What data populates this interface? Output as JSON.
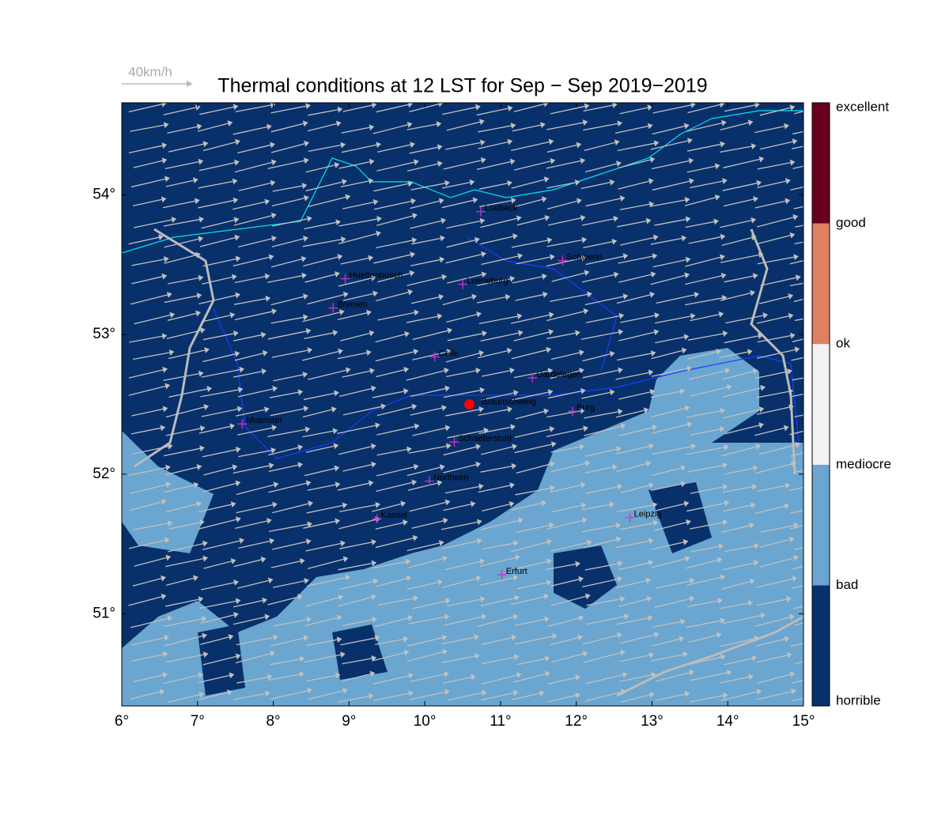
{
  "chart_data": {
    "type": "map",
    "title": "Thermal conditions at 12 LST for Sep − Sep  2019−2019",
    "wind_legend": "40km/h",
    "xlim": [
      6,
      15
    ],
    "xticks": [
      {
        "value": 6,
        "label": "6°"
      },
      {
        "value": 7,
        "label": "7°"
      },
      {
        "value": 8,
        "label": "8°"
      },
      {
        "value": 9,
        "label": "9°"
      },
      {
        "value": 10,
        "label": "10°"
      },
      {
        "value": 11,
        "label": "11°"
      },
      {
        "value": 12,
        "label": "12°"
      },
      {
        "value": 13,
        "label": "13°"
      },
      {
        "value": 14,
        "label": "14°"
      },
      {
        "value": 15,
        "label": "15°"
      }
    ],
    "ylim": [
      50.34,
      54.66
    ],
    "yticks": [
      {
        "value": 51,
        "label": "51°"
      },
      {
        "value": 52,
        "label": "52°"
      },
      {
        "value": 53,
        "label": "53°"
      },
      {
        "value": 54,
        "label": "54°"
      }
    ],
    "colorbar": {
      "labels": [
        "horrible",
        "bad",
        "mediocre",
        "ok",
        "good",
        "excellent"
      ],
      "colors": [
        "#08306b",
        "#6aa6cf",
        "#f2f2f2",
        "#e08063",
        "#67001f"
      ]
    },
    "cities": {
      "names": [
        "Luebeck",
        "Schwerin",
        "Huettenbusch",
        "Lueneburg",
        "Bremen",
        "Celle",
        "Gardelegen",
        "Burg",
        "Muenster",
        "Schaeferstuhl",
        "Northeim",
        "Kassel",
        "Leipzig",
        "Erfurt"
      ],
      "lon": [
        10.74,
        11.82,
        8.95,
        10.5,
        8.79,
        10.13,
        11.42,
        11.95,
        7.59,
        10.39,
        10.06,
        9.37,
        12.71,
        11.02
      ],
      "lat": [
        53.88,
        53.53,
        53.4,
        53.36,
        53.19,
        52.84,
        52.69,
        52.45,
        52.36,
        52.23,
        51.95,
        51.68,
        51.69,
        51.28
      ],
      "color": "#cc33cc"
    },
    "home": {
      "name": "Braunschweig",
      "lon": 10.59,
      "lat": 52.5,
      "color": "#ff0000"
    }
  }
}
